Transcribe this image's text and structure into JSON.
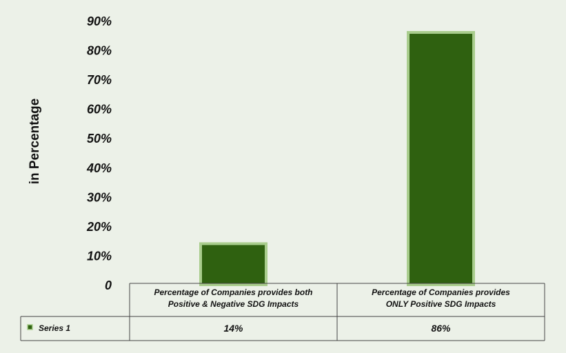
{
  "chart_data": {
    "type": "bar",
    "title": "",
    "ylabel": "in Percentage",
    "xlabel": "",
    "ylim": [
      0,
      90
    ],
    "yticks": [
      "0",
      "10%",
      "20%",
      "30%",
      "40%",
      "50%",
      "60%",
      "70%",
      "80%",
      "90%"
    ],
    "categories": [
      [
        "Percentage of Companies provides both",
        "Positive & Negative SDG Impacts"
      ],
      [
        "Percentage of Companies  provides",
        "ONLY Positive SDG Impacts"
      ]
    ],
    "series": [
      {
        "name": "Series 1",
        "values": [
          14,
          86
        ],
        "labels": [
          "14%",
          "86%"
        ],
        "color": "#2f6110",
        "border_color": "#a9cd8d"
      }
    ],
    "data_table": true,
    "legend_position": "data-table-left"
  }
}
